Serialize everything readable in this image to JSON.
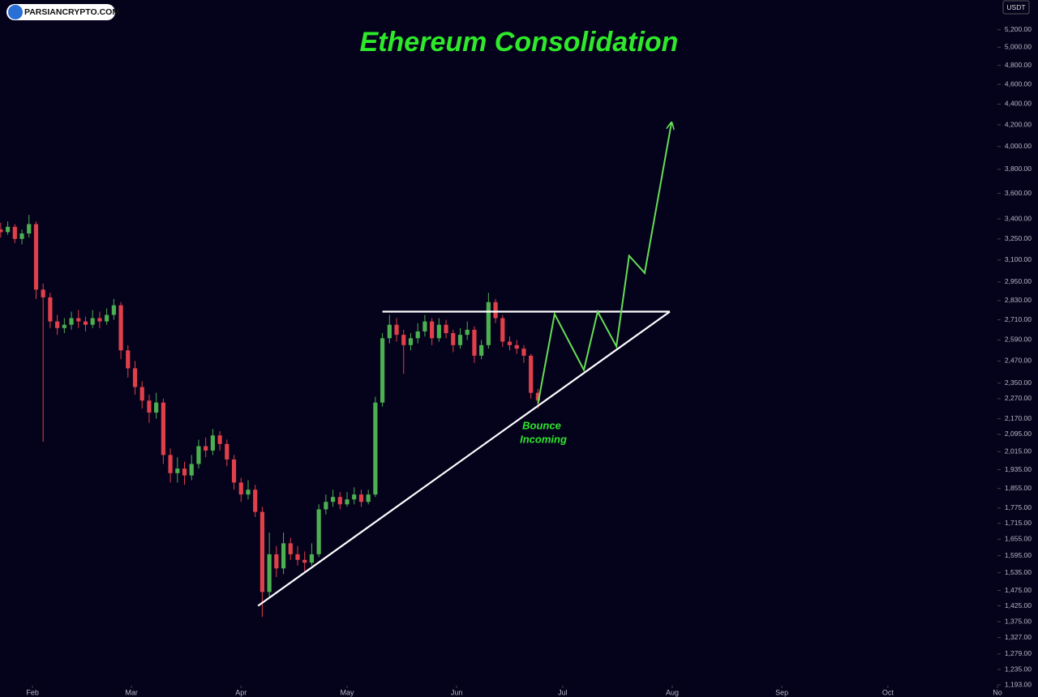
{
  "logo": "PARSIANCRYPTO.COM",
  "chart_data": {
    "type": "candlestick",
    "title": "Ethereum Consolidation",
    "annotations": [
      "Bounce",
      "Incoming"
    ],
    "currency": "USDT",
    "log_scale": true,
    "up_color": "#4caf50",
    "down_color": "#e0404a",
    "xlim": [
      -9.2,
      273
    ],
    "ylim": [
      1161,
      5560
    ],
    "xticks": [
      {
        "value": 0,
        "label": "Feb"
      },
      {
        "value": 28,
        "label": "Mar"
      },
      {
        "value": 59,
        "label": "Apr"
      },
      {
        "value": 89,
        "label": "May"
      },
      {
        "value": 120,
        "label": "Jun"
      },
      {
        "value": 150,
        "label": "Jul"
      },
      {
        "value": 181,
        "label": "Aug"
      },
      {
        "value": 212,
        "label": "Sep"
      },
      {
        "value": 242,
        "label": "Oct"
      },
      {
        "value": 273,
        "label": "No"
      }
    ],
    "yticks": [
      {
        "value": 5200,
        "label": "5,200.00"
      },
      {
        "value": 5000,
        "label": "5,000.00"
      },
      {
        "value": 4800,
        "label": "4,800.00"
      },
      {
        "value": 4600,
        "label": "4,600.00"
      },
      {
        "value": 4400,
        "label": "4,400.00"
      },
      {
        "value": 4200,
        "label": "4,200.00"
      },
      {
        "value": 4000,
        "label": "4,000.00"
      },
      {
        "value": 3800,
        "label": "3,800.00"
      },
      {
        "value": 3600,
        "label": "3,600.00"
      },
      {
        "value": 3400,
        "label": "3,400.00"
      },
      {
        "value": 3250,
        "label": "3,250.00"
      },
      {
        "value": 3100,
        "label": "3,100.00"
      },
      {
        "value": 2950,
        "label": "2,950.00"
      },
      {
        "value": 2830,
        "label": "2,830.00"
      },
      {
        "value": 2710,
        "label": "2,710.00"
      },
      {
        "value": 2590,
        "label": "2,590.00"
      },
      {
        "value": 2470,
        "label": "2,470.00"
      },
      {
        "value": 2350,
        "label": "2,350.00"
      },
      {
        "value": 2270,
        "label": "2,270.00"
      },
      {
        "value": 2170,
        "label": "2,170.00"
      },
      {
        "value": 2095,
        "label": "2,095.00"
      },
      {
        "value": 2015,
        "label": "2,015.00"
      },
      {
        "value": 1935,
        "label": "1,935.00"
      },
      {
        "value": 1855,
        "label": "1,855.00"
      },
      {
        "value": 1775,
        "label": "1,775.00"
      },
      {
        "value": 1715,
        "label": "1,715.00"
      },
      {
        "value": 1655,
        "label": "1,655.00"
      },
      {
        "value": 1595,
        "label": "1,595.00"
      },
      {
        "value": 1535,
        "label": "1,535.00"
      },
      {
        "value": 1475,
        "label": "1,475.00"
      },
      {
        "value": 1425,
        "label": "1,425.00"
      },
      {
        "value": 1375,
        "label": "1,375.00"
      },
      {
        "value": 1327,
        "label": "1,327.00"
      },
      {
        "value": 1279,
        "label": "1,279.00"
      },
      {
        "value": 1235,
        "label": "1,235.00"
      },
      {
        "value": 1193,
        "label": "1,193.00"
      }
    ],
    "x": [
      -9,
      -7,
      -5,
      -3,
      -1,
      1,
      3,
      5,
      7,
      9,
      11,
      13,
      15,
      17,
      19,
      21,
      23,
      25,
      27,
      29,
      31,
      33,
      35,
      37,
      39,
      41,
      43,
      45,
      47,
      49,
      51,
      53,
      55,
      57,
      59,
      61,
      63,
      65,
      67,
      69,
      71,
      73,
      75,
      77,
      79,
      81,
      83,
      85,
      87,
      89,
      91,
      93,
      95,
      97,
      99,
      101,
      103,
      105,
      107,
      109,
      111,
      113,
      115,
      117,
      119,
      121,
      123,
      125,
      127,
      129,
      131,
      133,
      135,
      137,
      139,
      141,
      143
    ],
    "ohlc": [
      [
        3320,
        3370,
        3260,
        3300
      ],
      [
        3300,
        3380,
        3280,
        3340
      ],
      [
        3340,
        3360,
        3220,
        3250
      ],
      [
        3250,
        3320,
        3210,
        3290
      ],
      [
        3290,
        3430,
        3260,
        3360
      ],
      [
        3360,
        3380,
        2840,
        2900
      ],
      [
        2900,
        2940,
        2060,
        2850
      ],
      [
        2850,
        2880,
        2660,
        2700
      ],
      [
        2700,
        2740,
        2620,
        2660
      ],
      [
        2660,
        2720,
        2630,
        2680
      ],
      [
        2680,
        2760,
        2650,
        2720
      ],
      [
        2720,
        2770,
        2660,
        2700
      ],
      [
        2700,
        2730,
        2640,
        2680
      ],
      [
        2680,
        2770,
        2660,
        2720
      ],
      [
        2720,
        2760,
        2660,
        2700
      ],
      [
        2700,
        2780,
        2680,
        2740
      ],
      [
        2740,
        2840,
        2710,
        2800
      ],
      [
        2800,
        2820,
        2480,
        2530
      ],
      [
        2530,
        2560,
        2380,
        2430
      ],
      [
        2430,
        2470,
        2290,
        2330
      ],
      [
        2330,
        2360,
        2220,
        2260
      ],
      [
        2260,
        2290,
        2150,
        2200
      ],
      [
        2200,
        2300,
        2170,
        2250
      ],
      [
        2250,
        2270,
        1960,
        2000
      ],
      [
        2000,
        2030,
        1880,
        1920
      ],
      [
        1920,
        1990,
        1880,
        1940
      ],
      [
        1940,
        1970,
        1870,
        1910
      ],
      [
        1910,
        2000,
        1890,
        1960
      ],
      [
        1960,
        2070,
        1940,
        2040
      ],
      [
        2040,
        2080,
        1990,
        2020
      ],
      [
        2020,
        2120,
        2000,
        2090
      ],
      [
        2090,
        2110,
        2020,
        2050
      ],
      [
        2050,
        2070,
        1950,
        1980
      ],
      [
        1980,
        2000,
        1850,
        1880
      ],
      [
        1880,
        1900,
        1800,
        1830
      ],
      [
        1830,
        1890,
        1810,
        1850
      ],
      [
        1850,
        1870,
        1740,
        1760
      ],
      [
        1760,
        1780,
        1390,
        1470
      ],
      [
        1470,
        1680,
        1450,
        1600
      ],
      [
        1600,
        1630,
        1520,
        1550
      ],
      [
        1550,
        1680,
        1530,
        1640
      ],
      [
        1640,
        1660,
        1580,
        1600
      ],
      [
        1600,
        1630,
        1560,
        1580
      ],
      [
        1580,
        1610,
        1540,
        1570
      ],
      [
        1570,
        1640,
        1560,
        1600
      ],
      [
        1600,
        1790,
        1590,
        1770
      ],
      [
        1770,
        1830,
        1750,
        1800
      ],
      [
        1800,
        1850,
        1780,
        1820
      ],
      [
        1820,
        1840,
        1770,
        1790
      ],
      [
        1790,
        1840,
        1780,
        1810
      ],
      [
        1810,
        1860,
        1790,
        1830
      ],
      [
        1830,
        1850,
        1780,
        1800
      ],
      [
        1800,
        1850,
        1790,
        1830
      ],
      [
        1830,
        2280,
        1820,
        2250
      ],
      [
        2250,
        2630,
        2230,
        2600
      ],
      [
        2600,
        2740,
        2570,
        2680
      ],
      [
        2680,
        2720,
        2580,
        2620
      ],
      [
        2620,
        2650,
        2400,
        2560
      ],
      [
        2560,
        2630,
        2530,
        2600
      ],
      [
        2600,
        2690,
        2570,
        2640
      ],
      [
        2640,
        2740,
        2610,
        2700
      ],
      [
        2700,
        2720,
        2560,
        2600
      ],
      [
        2600,
        2720,
        2580,
        2680
      ],
      [
        2680,
        2710,
        2600,
        2630
      ],
      [
        2630,
        2650,
        2520,
        2560
      ],
      [
        2560,
        2660,
        2540,
        2620
      ],
      [
        2620,
        2700,
        2590,
        2650
      ],
      [
        2650,
        2670,
        2460,
        2500
      ],
      [
        2500,
        2590,
        2480,
        2560
      ],
      [
        2560,
        2880,
        2540,
        2820
      ],
      [
        2820,
        2840,
        2690,
        2720
      ],
      [
        2720,
        2740,
        2550,
        2580
      ],
      [
        2580,
        2610,
        2530,
        2560
      ],
      [
        2560,
        2590,
        2510,
        2540
      ],
      [
        2540,
        2560,
        2460,
        2500
      ],
      [
        2500,
        2510,
        2270,
        2300
      ],
      [
        2300,
        2320,
        2220,
        2260
      ]
    ],
    "trendlines": [
      {
        "color": "#ffffff",
        "x": [
          99,
          180.3
        ],
        "values": [
          2760,
          2760
        ]
      },
      {
        "color": "#ffffff",
        "x": [
          63.8,
          180.3
        ],
        "values": [
          1425,
          2760
        ]
      }
    ],
    "projection": {
      "color": "#66dd55",
      "x": [
        143,
        147.7,
        156,
        159.9,
        165.2,
        168.8,
        173.2,
        180.8
      ],
      "values": [
        2245,
        2745,
        2421,
        2760,
        2553,
        3129,
        3011,
        4223
      ]
    }
  }
}
